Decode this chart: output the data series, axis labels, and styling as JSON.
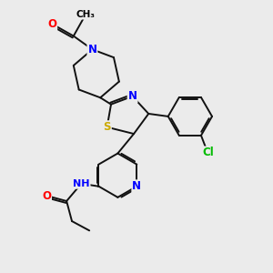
{
  "bg_color": "#ebebeb",
  "atom_colors": {
    "O": "#ff0000",
    "N": "#0000ff",
    "S": "#ccaa00",
    "Cl": "#00bb00",
    "C": "#000000",
    "H": "#444444"
  },
  "font_size": 8.5,
  "bond_color": "#111111",
  "bond_lw": 1.4
}
